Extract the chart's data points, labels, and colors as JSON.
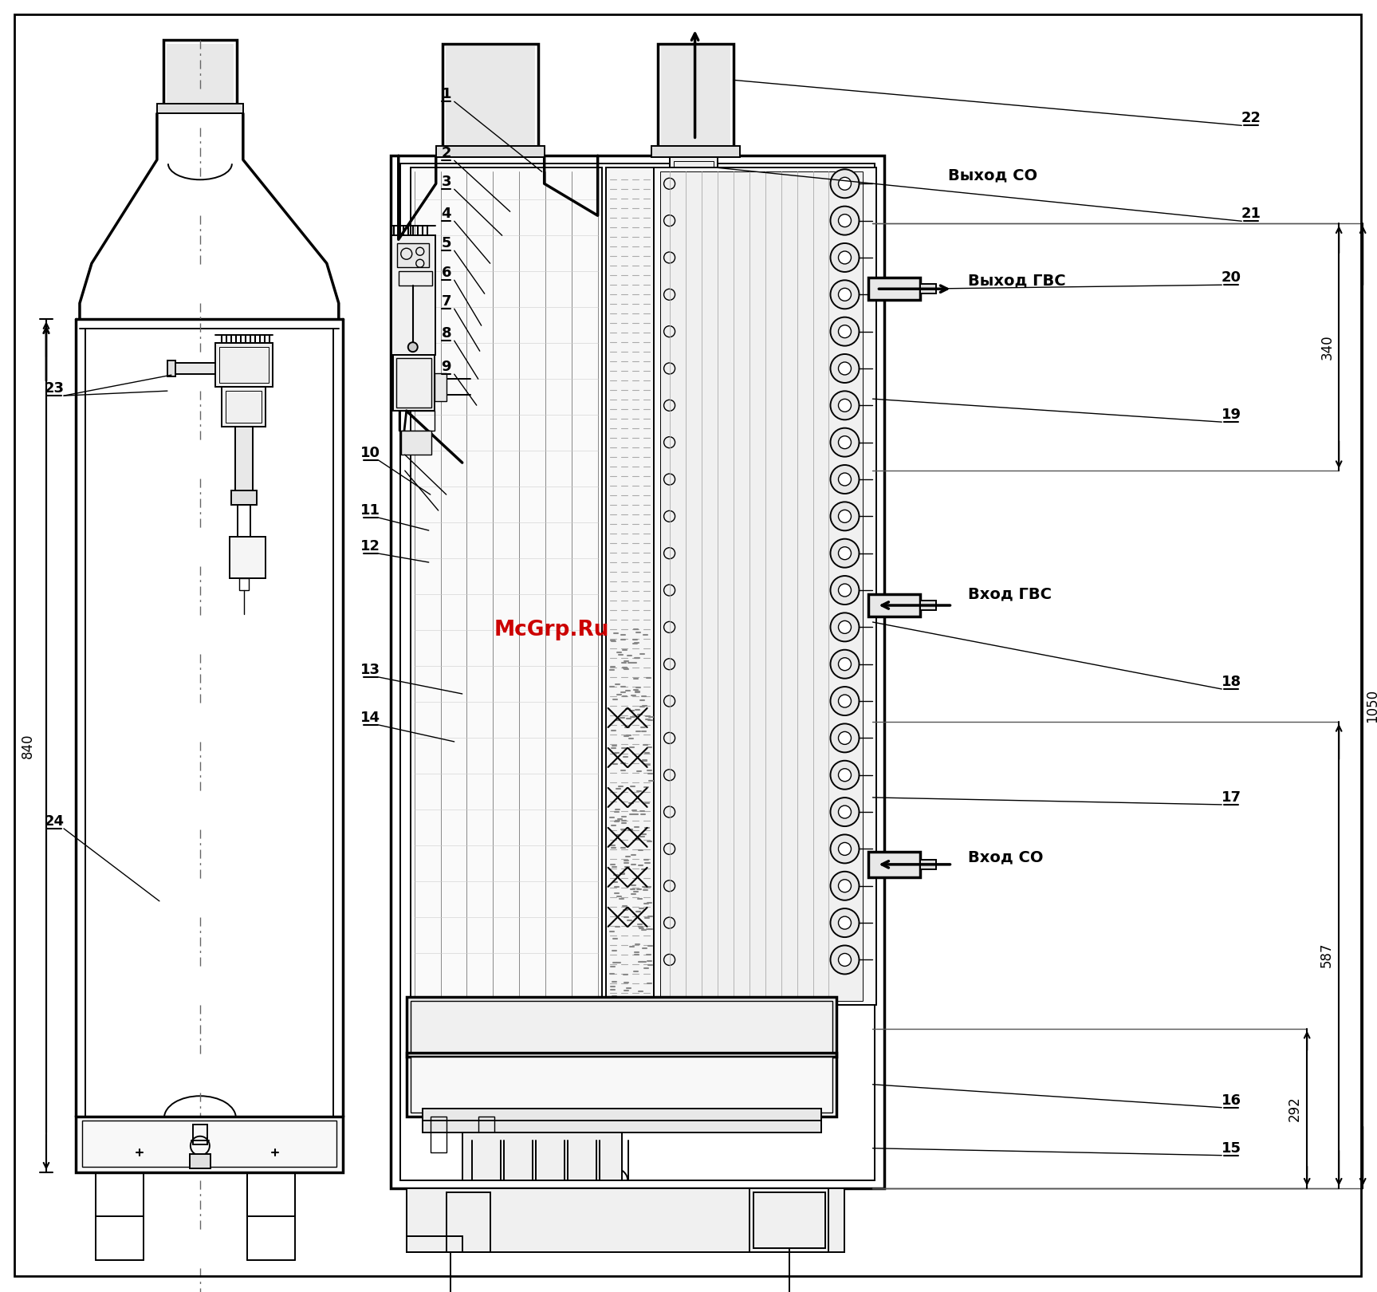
{
  "background_color": "#ffffff",
  "line_color": "#000000",
  "watermark_text": "McGrp.Ru",
  "watermark_color": "#cc0000",
  "anno_texts": {
    "vyhod_so": "Выход СО",
    "vyhod_gvs": "Выход ГВС",
    "vhod_gvs": "Вход ГВС",
    "vhod_so": "Вход СО"
  },
  "dim_labels": [
    "840",
    "1050",
    "340",
    "587",
    "292"
  ]
}
